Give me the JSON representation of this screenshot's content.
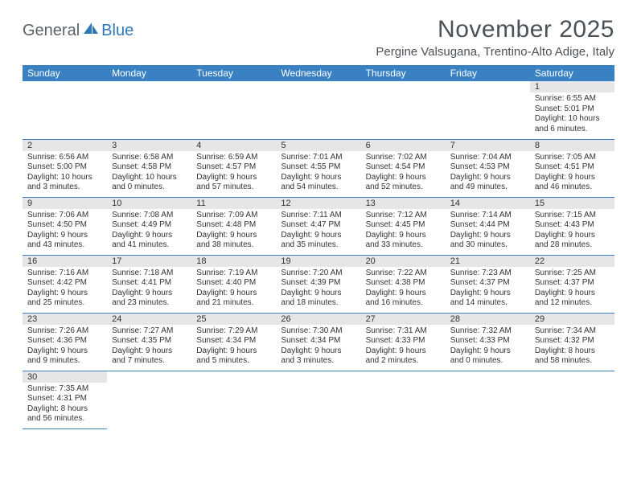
{
  "logo": {
    "general": "General",
    "blue": "Blue"
  },
  "title": "November 2025",
  "location": "Pergine Valsugana, Trentino-Alto Adige, Italy",
  "colors": {
    "header_bg": "#3a81c4",
    "header_text": "#ffffff",
    "daynum_bg": "#e4e6e8",
    "border": "#3a81c4",
    "title_color": "#4a5258",
    "logo_gray": "#5a6268",
    "logo_blue": "#2f78b7"
  },
  "typography": {
    "title_fontsize": 30,
    "location_fontsize": 15,
    "th_fontsize": 12,
    "cell_fontsize": 10
  },
  "weekdays": [
    "Sunday",
    "Monday",
    "Tuesday",
    "Wednesday",
    "Thursday",
    "Friday",
    "Saturday"
  ],
  "weeks": [
    [
      null,
      null,
      null,
      null,
      null,
      null,
      {
        "n": "1",
        "sunrise": "Sunrise: 6:55 AM",
        "sunset": "Sunset: 5:01 PM",
        "daylight": "Daylight: 10 hours and 6 minutes."
      }
    ],
    [
      {
        "n": "2",
        "sunrise": "Sunrise: 6:56 AM",
        "sunset": "Sunset: 5:00 PM",
        "daylight": "Daylight: 10 hours and 3 minutes."
      },
      {
        "n": "3",
        "sunrise": "Sunrise: 6:58 AM",
        "sunset": "Sunset: 4:58 PM",
        "daylight": "Daylight: 10 hours and 0 minutes."
      },
      {
        "n": "4",
        "sunrise": "Sunrise: 6:59 AM",
        "sunset": "Sunset: 4:57 PM",
        "daylight": "Daylight: 9 hours and 57 minutes."
      },
      {
        "n": "5",
        "sunrise": "Sunrise: 7:01 AM",
        "sunset": "Sunset: 4:55 PM",
        "daylight": "Daylight: 9 hours and 54 minutes."
      },
      {
        "n": "6",
        "sunrise": "Sunrise: 7:02 AM",
        "sunset": "Sunset: 4:54 PM",
        "daylight": "Daylight: 9 hours and 52 minutes."
      },
      {
        "n": "7",
        "sunrise": "Sunrise: 7:04 AM",
        "sunset": "Sunset: 4:53 PM",
        "daylight": "Daylight: 9 hours and 49 minutes."
      },
      {
        "n": "8",
        "sunrise": "Sunrise: 7:05 AM",
        "sunset": "Sunset: 4:51 PM",
        "daylight": "Daylight: 9 hours and 46 minutes."
      }
    ],
    [
      {
        "n": "9",
        "sunrise": "Sunrise: 7:06 AM",
        "sunset": "Sunset: 4:50 PM",
        "daylight": "Daylight: 9 hours and 43 minutes."
      },
      {
        "n": "10",
        "sunrise": "Sunrise: 7:08 AM",
        "sunset": "Sunset: 4:49 PM",
        "daylight": "Daylight: 9 hours and 41 minutes."
      },
      {
        "n": "11",
        "sunrise": "Sunrise: 7:09 AM",
        "sunset": "Sunset: 4:48 PM",
        "daylight": "Daylight: 9 hours and 38 minutes."
      },
      {
        "n": "12",
        "sunrise": "Sunrise: 7:11 AM",
        "sunset": "Sunset: 4:47 PM",
        "daylight": "Daylight: 9 hours and 35 minutes."
      },
      {
        "n": "13",
        "sunrise": "Sunrise: 7:12 AM",
        "sunset": "Sunset: 4:45 PM",
        "daylight": "Daylight: 9 hours and 33 minutes."
      },
      {
        "n": "14",
        "sunrise": "Sunrise: 7:14 AM",
        "sunset": "Sunset: 4:44 PM",
        "daylight": "Daylight: 9 hours and 30 minutes."
      },
      {
        "n": "15",
        "sunrise": "Sunrise: 7:15 AM",
        "sunset": "Sunset: 4:43 PM",
        "daylight": "Daylight: 9 hours and 28 minutes."
      }
    ],
    [
      {
        "n": "16",
        "sunrise": "Sunrise: 7:16 AM",
        "sunset": "Sunset: 4:42 PM",
        "daylight": "Daylight: 9 hours and 25 minutes."
      },
      {
        "n": "17",
        "sunrise": "Sunrise: 7:18 AM",
        "sunset": "Sunset: 4:41 PM",
        "daylight": "Daylight: 9 hours and 23 minutes."
      },
      {
        "n": "18",
        "sunrise": "Sunrise: 7:19 AM",
        "sunset": "Sunset: 4:40 PM",
        "daylight": "Daylight: 9 hours and 21 minutes."
      },
      {
        "n": "19",
        "sunrise": "Sunrise: 7:20 AM",
        "sunset": "Sunset: 4:39 PM",
        "daylight": "Daylight: 9 hours and 18 minutes."
      },
      {
        "n": "20",
        "sunrise": "Sunrise: 7:22 AM",
        "sunset": "Sunset: 4:38 PM",
        "daylight": "Daylight: 9 hours and 16 minutes."
      },
      {
        "n": "21",
        "sunrise": "Sunrise: 7:23 AM",
        "sunset": "Sunset: 4:37 PM",
        "daylight": "Daylight: 9 hours and 14 minutes."
      },
      {
        "n": "22",
        "sunrise": "Sunrise: 7:25 AM",
        "sunset": "Sunset: 4:37 PM",
        "daylight": "Daylight: 9 hours and 12 minutes."
      }
    ],
    [
      {
        "n": "23",
        "sunrise": "Sunrise: 7:26 AM",
        "sunset": "Sunset: 4:36 PM",
        "daylight": "Daylight: 9 hours and 9 minutes."
      },
      {
        "n": "24",
        "sunrise": "Sunrise: 7:27 AM",
        "sunset": "Sunset: 4:35 PM",
        "daylight": "Daylight: 9 hours and 7 minutes."
      },
      {
        "n": "25",
        "sunrise": "Sunrise: 7:29 AM",
        "sunset": "Sunset: 4:34 PM",
        "daylight": "Daylight: 9 hours and 5 minutes."
      },
      {
        "n": "26",
        "sunrise": "Sunrise: 7:30 AM",
        "sunset": "Sunset: 4:34 PM",
        "daylight": "Daylight: 9 hours and 3 minutes."
      },
      {
        "n": "27",
        "sunrise": "Sunrise: 7:31 AM",
        "sunset": "Sunset: 4:33 PM",
        "daylight": "Daylight: 9 hours and 2 minutes."
      },
      {
        "n": "28",
        "sunrise": "Sunrise: 7:32 AM",
        "sunset": "Sunset: 4:33 PM",
        "daylight": "Daylight: 9 hours and 0 minutes."
      },
      {
        "n": "29",
        "sunrise": "Sunrise: 7:34 AM",
        "sunset": "Sunset: 4:32 PM",
        "daylight": "Daylight: 8 hours and 58 minutes."
      }
    ],
    [
      {
        "n": "30",
        "sunrise": "Sunrise: 7:35 AM",
        "sunset": "Sunset: 4:31 PM",
        "daylight": "Daylight: 8 hours and 56 minutes."
      },
      null,
      null,
      null,
      null,
      null,
      null
    ]
  ]
}
